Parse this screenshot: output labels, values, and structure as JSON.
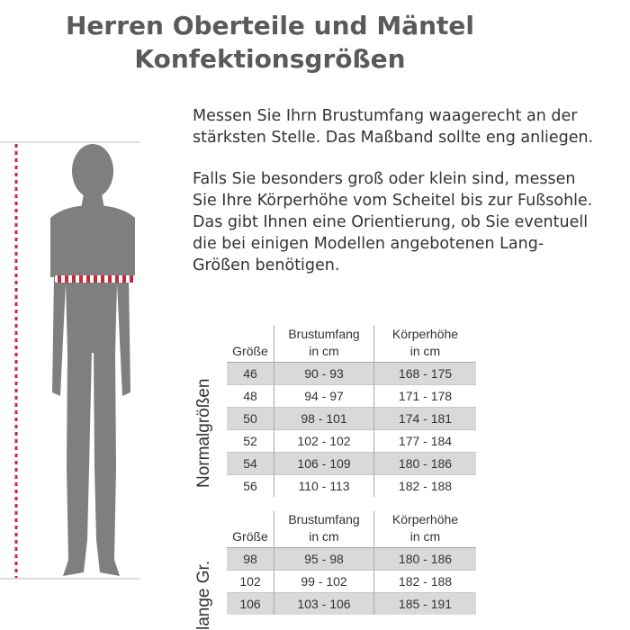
{
  "title": {
    "line1": "Herren Oberteile und Mäntel",
    "line2": "Konfektionsgrößen"
  },
  "instructions": {
    "paragraph1": "Messen Sie Ihrn Brustumfang waagerecht an der\nstärksten Stelle. Das Maßband sollte eng anliegen.",
    "paragraph2": "Falls Sie besonders groß oder klein sind, messen\nSie Ihre Körperhöhe vom Scheitel bis zur Fußsohle.\nDas gibt Ihnen eine Orientierung, ob Sie eventuell\ndie bei einigen Modellen angebotenen Lang-\nGrößen benötigen."
  },
  "colors": {
    "measure_line": "#c8283a",
    "figure": "#7f7f7f",
    "row_shade": "#d9d9d9"
  },
  "normal_sizes": {
    "label": "Normalgrößen",
    "headers": {
      "size": "Größe",
      "chest_1": "Brustumfang",
      "chest_2": "in cm",
      "height_1": "Körperhöhe",
      "height_2": "in cm"
    },
    "rows": [
      [
        "46",
        "90 - 93",
        "168 - 175"
      ],
      [
        "48",
        "94 - 97",
        "171 - 178"
      ],
      [
        "50",
        "98 - 101",
        "174 - 181"
      ],
      [
        "52",
        "102 - 102",
        "177 - 184"
      ],
      [
        "54",
        "106 - 109",
        "180 - 186"
      ],
      [
        "56",
        "110 - 113",
        "182 - 188"
      ]
    ]
  },
  "long_sizes": {
    "label": "lange Gr.",
    "headers": {
      "size": "Größe",
      "chest_1": "Brustumfang",
      "chest_2": "in cm",
      "height_1": "Körperhöhe",
      "height_2": "in cm"
    },
    "rows": [
      [
        "98",
        "95 - 98",
        "180 - 186"
      ],
      [
        "102",
        "99 - 102",
        "182 - 188"
      ],
      [
        "106",
        "103 - 106",
        "185 - 191"
      ]
    ]
  }
}
